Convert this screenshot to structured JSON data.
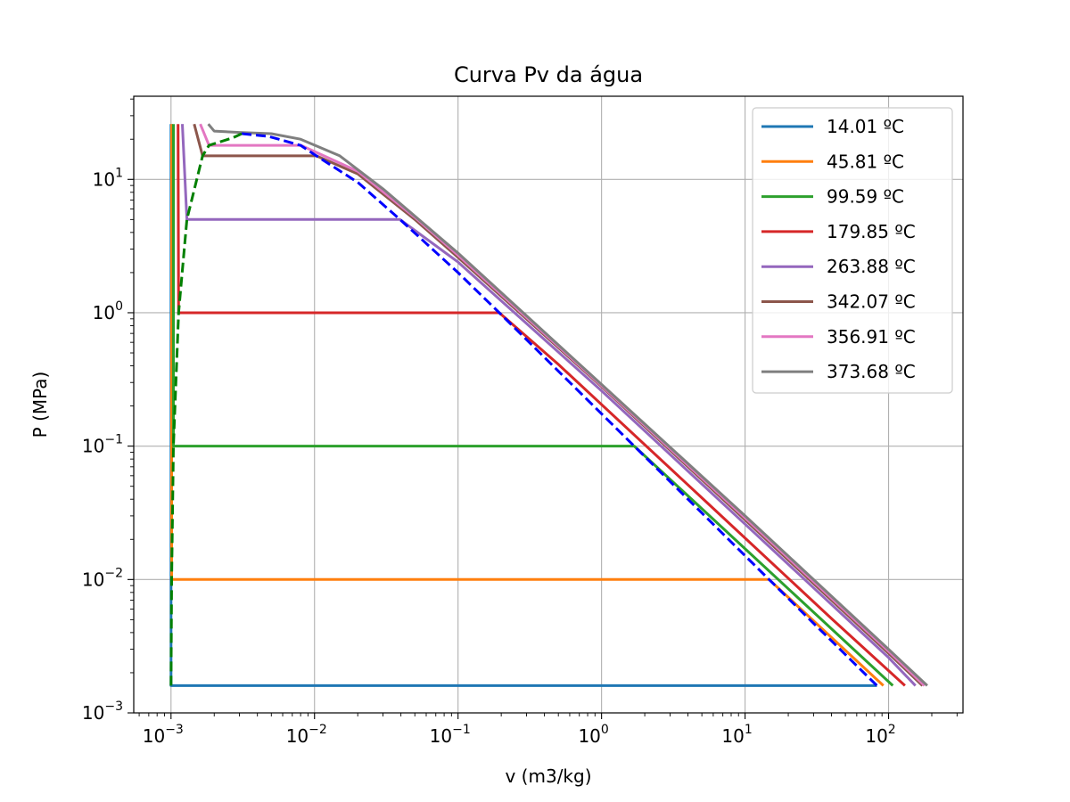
{
  "chart_data": {
    "type": "line",
    "title": "Curva Pv da água",
    "xlabel": "v (m3/kg)",
    "ylabel": "P (MPa)",
    "xscale": "log",
    "yscale": "log",
    "xlim": [
      0.00055,
      330
    ],
    "ylim": [
      0.001,
      42
    ],
    "grid": true,
    "legend_position": "top-right",
    "x_ticks": [
      {
        "value": 0.001,
        "base": "10",
        "exp": "−3"
      },
      {
        "value": 0.01,
        "base": "10",
        "exp": "−2"
      },
      {
        "value": 0.1,
        "base": "10",
        "exp": "−1"
      },
      {
        "value": 1,
        "base": "10",
        "exp": "0"
      },
      {
        "value": 10,
        "base": "10",
        "exp": "1"
      },
      {
        "value": 100,
        "base": "10",
        "exp": "2"
      }
    ],
    "y_ticks": [
      {
        "value": 0.001,
        "base": "10",
        "exp": "−3"
      },
      {
        "value": 0.01,
        "base": "10",
        "exp": "−2"
      },
      {
        "value": 0.1,
        "base": "10",
        "exp": "−1"
      },
      {
        "value": 1,
        "base": "10",
        "exp": "0"
      },
      {
        "value": 10,
        "base": "10",
        "exp": "1"
      }
    ],
    "series": [
      {
        "name": "14.01 ºC",
        "color": "#1f77b4",
        "x": [
          0.001,
          0.001,
          0.001,
          83
        ],
        "y": [
          26,
          0.0025,
          0.0016,
          0.0016
        ]
      },
      {
        "name": "45.81 ºC",
        "color": "#ff7f0e",
        "x": [
          0.00101,
          0.00101,
          14.7,
          92
        ],
        "y": [
          26,
          0.01,
          0.01,
          0.0016
        ]
      },
      {
        "name": "99.59 ºC",
        "color": "#2ca02c",
        "x": [
          0.00104,
          0.00104,
          1.69,
          107
        ],
        "y": [
          26,
          0.1,
          0.1,
          0.0016
        ]
      },
      {
        "name": "179.85 ºC",
        "color": "#d62728",
        "x": [
          0.00112,
          0.00113,
          0.194,
          0.5,
          5,
          40,
          130
        ],
        "y": [
          26,
          1,
          1,
          0.41,
          0.041,
          0.0051,
          0.0016
        ]
      },
      {
        "name": "263.88 ºC",
        "color": "#9467bd",
        "x": [
          0.0012,
          0.00129,
          0.0394,
          0.1,
          1,
          10,
          100,
          154
        ],
        "y": [
          26,
          5,
          5,
          2.4,
          0.26,
          0.026,
          0.0026,
          0.0016
        ]
      },
      {
        "name": "342.07 ºC",
        "color": "#8c564b",
        "x": [
          0.00145,
          0.00166,
          0.0103,
          0.02,
          0.05,
          0.1,
          1,
          10,
          100,
          172
        ],
        "y": [
          26,
          15,
          15,
          11,
          5,
          2.6,
          0.28,
          0.028,
          0.0028,
          0.0016
        ]
      },
      {
        "name": "356.91 ºC",
        "color": "#e377c2",
        "x": [
          0.0016,
          0.00184,
          0.00805,
          0.02,
          0.05,
          0.1,
          1,
          10,
          100,
          178
        ],
        "y": [
          26,
          18,
          18,
          11.5,
          5.2,
          2.7,
          0.285,
          0.029,
          0.0029,
          0.0016
        ]
      },
      {
        "name": "373.68 ºC",
        "color": "#7f7f7f",
        "x": [
          0.00182,
          0.002,
          0.003,
          0.005,
          0.008,
          0.015,
          0.03,
          0.1,
          1,
          10,
          100,
          186
        ],
        "y": [
          26,
          23,
          22.5,
          22,
          20,
          15,
          8.5,
          2.8,
          0.29,
          0.03,
          0.003,
          0.0016
        ]
      }
    ],
    "saturation_curves": [
      {
        "color": "#0000ff",
        "style": "dashed",
        "x": [
          0.00311,
          0.0048,
          0.008,
          0.0103,
          0.02,
          0.0394,
          0.1,
          0.194,
          1.69,
          14.7,
          83
        ],
        "y": [
          22,
          21,
          18,
          15,
          9.5,
          5,
          2.0,
          1,
          0.1,
          0.01,
          0.0016
        ]
      },
      {
        "color": "#008000",
        "style": "dashed",
        "x": [
          0.001,
          0.00101,
          0.00104,
          0.00113,
          0.00129,
          0.00166,
          0.00184,
          0.0027,
          0.00311
        ],
        "y": [
          0.0016,
          0.01,
          0.1,
          1,
          5,
          15,
          18,
          20.5,
          22
        ]
      }
    ]
  }
}
